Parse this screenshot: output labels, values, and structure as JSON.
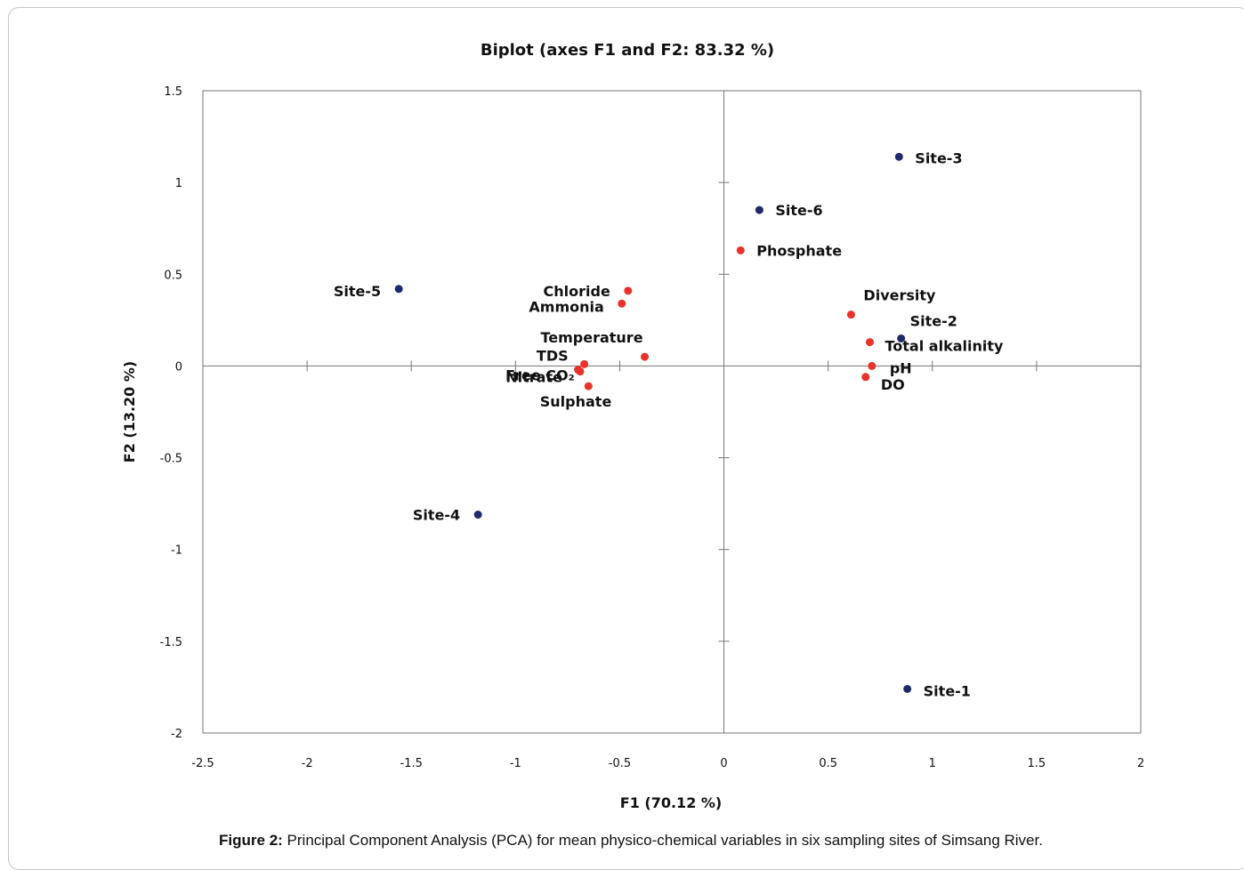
{
  "chart_data": {
    "type": "scatter",
    "title": "Biplot (axes F1 and F2: 83.32 %)",
    "xlabel": "F1 (70.12 %)",
    "ylabel": "F2 (13.20 %)",
    "xlim": [
      -2.5,
      2
    ],
    "ylim": [
      -2,
      1.5
    ],
    "xticks": [
      "-2.5",
      "-2",
      "-1.5",
      "-1",
      "-0.5",
      "0",
      "0.5",
      "1",
      "1.5",
      "2"
    ],
    "xtick_values": [
      -2.5,
      -2,
      -1.5,
      -1,
      -0.5,
      0,
      0.5,
      1,
      1.5,
      2
    ],
    "yticks": [
      "1.5",
      "1",
      "0.5",
      "0",
      "-0.5",
      "-1",
      "-1.5",
      "-2"
    ],
    "ytick_values": [
      1.5,
      1,
      0.5,
      0,
      -0.5,
      -1,
      -1.5,
      -2
    ],
    "grid": false,
    "series": [
      {
        "color": "#1f2a6b",
        "points": [
          {
            "label": "Site-1",
            "x": 0.88,
            "y": -1.76
          },
          {
            "label": "Site-2",
            "x": 0.85,
            "y": 0.15
          },
          {
            "label": "Site-3",
            "x": 0.84,
            "y": 1.14
          },
          {
            "label": "Site-4",
            "x": -1.18,
            "y": -0.81
          },
          {
            "label": "Site-5",
            "x": -1.56,
            "y": 0.42
          },
          {
            "label": "Site-6",
            "x": 0.17,
            "y": 0.85
          }
        ]
      },
      {
        "color": "#e8322a",
        "points": [
          {
            "label": "Phosphate",
            "x": 0.08,
            "y": 0.63
          },
          {
            "label": "Diversity",
            "x": 0.61,
            "y": 0.28
          },
          {
            "label": "Total alkalinity",
            "x": 0.7,
            "y": 0.13
          },
          {
            "label": "pH",
            "x": 0.71,
            "y": 0.0
          },
          {
            "label": "DO",
            "x": 0.68,
            "y": -0.06
          },
          {
            "label": "Chloride",
            "x": -0.46,
            "y": 0.41
          },
          {
            "label": "Ammonia",
            "x": -0.49,
            "y": 0.34
          },
          {
            "label": "Temperature",
            "x": -0.38,
            "y": 0.05
          },
          {
            "label": "TDS",
            "x": -0.67,
            "y": 0.01
          },
          {
            "label": "Nitrate",
            "x": -0.69,
            "y": -0.03
          },
          {
            "label": "Free CO₂",
            "x": -0.7,
            "y": -0.02
          },
          {
            "label": "Sulphate",
            "x": -0.65,
            "y": -0.11
          }
        ]
      }
    ]
  },
  "caption": {
    "prefix": "Figure 2:",
    "text": " Principal Component Analysis (PCA) for mean physico-chemical variables in six sampling sites of Simsang River."
  }
}
